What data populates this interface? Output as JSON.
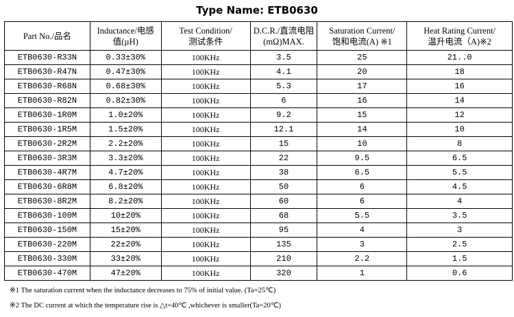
{
  "title": "Type Name: ETB0630",
  "headers": [
    [
      "Part No./品名",
      ""
    ],
    [
      "Inductance/电感",
      "值(µH)"
    ],
    [
      "Test Condition/",
      "测试条件"
    ],
    [
      "D.C.R./直流电阻",
      "(mΩ)MAX."
    ],
    [
      "Saturation Current/",
      "饱和电流(A) ※1"
    ],
    [
      "Heat Rating Current/",
      "温升电流（A)※2"
    ]
  ],
  "rows": [
    [
      "ETB0630-R33N",
      "0.33±30%",
      "100KHz",
      "3.5",
      "25",
      "21..0"
    ],
    [
      "ETB0630-R47N",
      "0.47±30%",
      "100KHz",
      "4.1",
      "20",
      "18"
    ],
    [
      "ETB0630-R68N",
      "0.68±30%",
      "100KHz",
      "5.3",
      "17",
      "16"
    ],
    [
      "ETB0630-R82N",
      "0.82±30%",
      "100KHz",
      "6",
      "16",
      "14"
    ],
    [
      "ETB0630-1R0M",
      "1.0±20%",
      "100KHz",
      "9.2",
      "15",
      "12"
    ],
    [
      "ETB0630-1R5M",
      "1.5±20%",
      "100KHz",
      "12.1",
      "14",
      "10"
    ],
    [
      "ETB0630-2R2M",
      "2.2±20%",
      "100KHz",
      "15",
      "10",
      "8"
    ],
    [
      "ETB0630-3R3M",
      "3.3±20%",
      "100KHz",
      "22",
      "9.5",
      "6.5"
    ],
    [
      "ETB0630-4R7M",
      "4.7±20%",
      "100KHz",
      "38",
      "6.5",
      "5.5"
    ],
    [
      "ETB0630-6R8M",
      "6.8±20%",
      "100KHz",
      "50",
      "6",
      "4.5"
    ],
    [
      "ETB0630-8R2M",
      "8.2±20%",
      "100KHz",
      "60",
      "6",
      "4"
    ],
    [
      "ETB0630-100M",
      "10±20%",
      "100KHz",
      "68",
      "5.5",
      "3.5"
    ],
    [
      "ETB0630-150M",
      "15±20%",
      "100KHz",
      "95",
      "4",
      "3"
    ],
    [
      "ETB0630-220M",
      "22±20%",
      "100KHz",
      "135",
      "3",
      "2.5"
    ],
    [
      "ETB0630-330M",
      "33±20%",
      "100KHz",
      "210",
      "2.2",
      "1.5"
    ],
    [
      "ETB0630-470M",
      "47±20%",
      "100KHz",
      "320",
      "1",
      "0.6"
    ]
  ],
  "notes": [
    "※1 The saturation current when the inductance decreases to 75% of initial value. (Ta=25℃)",
    "※2 The DC current at which the temperature rise is △t=40℃ ,whichever is smaller(Ta=20℃)"
  ]
}
